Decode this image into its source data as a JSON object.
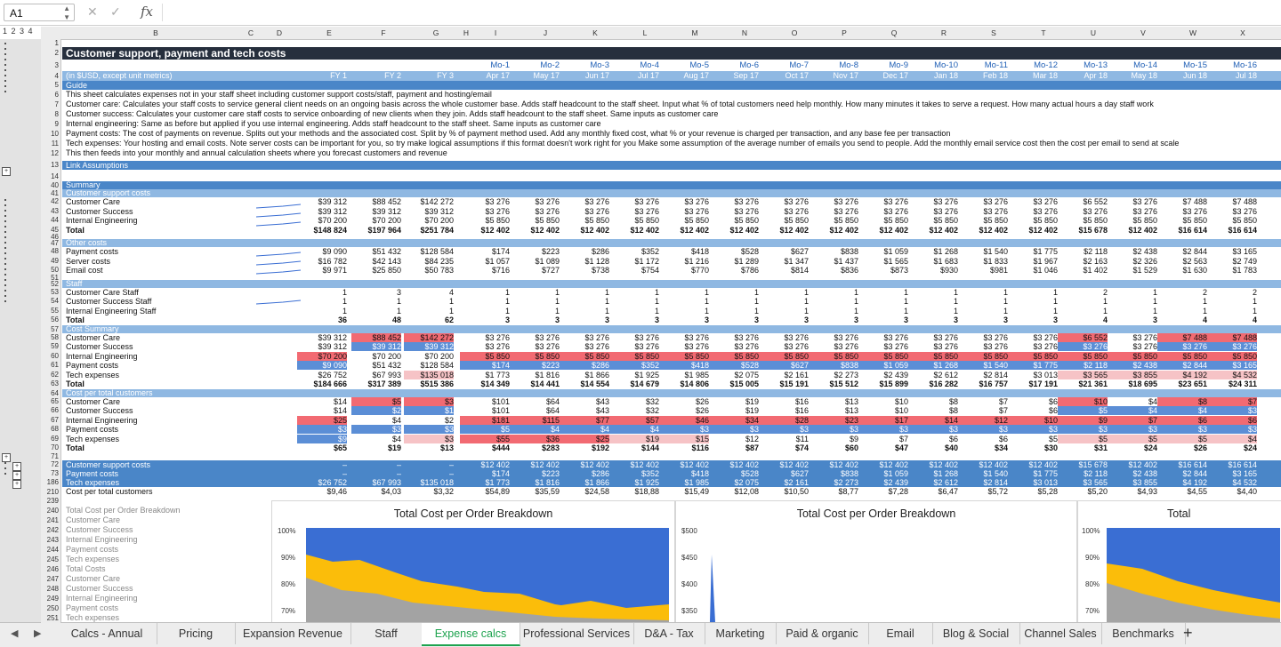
{
  "formula_bar": {
    "name_box": "A1",
    "fx": "fx",
    "cancel": "✕",
    "confirm": "✓"
  },
  "outline_levels": "1 2 3 4",
  "columns": [
    "B",
    "C",
    "D",
    "E",
    "F",
    "G",
    "H",
    "I",
    "J",
    "K",
    "L",
    "M",
    "N",
    "O",
    "P",
    "Q",
    "R",
    "S",
    "T",
    "U",
    "V",
    "W",
    "X"
  ],
  "rows": {
    "title": "Customer support, payment and tech costs",
    "units": "(in $USD, except unit metrics)",
    "guide": "Guide",
    "fy": [
      "FY 1",
      "FY 2",
      "FY 3"
    ],
    "months": [
      "Mo-1",
      "Mo-2",
      "Mo-3",
      "Mo-4",
      "Mo-5",
      "Mo-6",
      "Mo-7",
      "Mo-8",
      "Mo-9",
      "Mo-10",
      "Mo-11",
      "Mo-12",
      "Mo-13",
      "Mo-14",
      "Mo-15",
      "Mo-16"
    ],
    "month_dates": [
      "Apr 17",
      "May 17",
      "Jun 17",
      "Jul 17",
      "Aug 17",
      "Sep 17",
      "Oct 17",
      "Nov 17",
      "Dec 17",
      "Jan 18",
      "Feb 18",
      "Mar 18",
      "Apr 18",
      "May 18",
      "Jun 18",
      "Jul 18"
    ],
    "guide_lines": [
      "This sheet calculates expenses not in your staff sheet including customer support costs/staff, payment and hosting/email",
      "Customer care: Calculates your staff costs to service general client needs on an ongoing basis across the whole customer base. Adds staff headcount to the staff sheet. Input what % of total customers need help monthly. How many minutes it takes to serve a request. How many actual hours a day staff work",
      "Customer success: Calculates your customer care staff costs to service onboarding of new clients when they join. Adds staff headcount to the staff sheet. Same inputs as customer care",
      "Internal engineering: Same as before but applied if you use internal engineering. Adds staff headcount to the staff sheet. Same inputs as customer care",
      "Payment costs: The cost of payments on revenue. Splits out your methods and the associated cost. Split by % of payment method used. Add any monthly fixed cost, what % or your revenue is charged per transaction, and any base fee per transaction",
      "Tech expenses: Your hosting and email costs. Note server costs can be important for you, so try make logical assumptions if this format doesn't work right for you Make some assumption of the average number of emails you send to people. Add the monthly email service cost then the cost per email to send at scale",
      "This then feeds into your monthly and annual calculation sheets where you forecast customers and revenue"
    ],
    "link_assumptions": "Link Assumptions",
    "summary": "Summary",
    "customer_support_costs": "Customer support costs",
    "other_costs": "Other costs",
    "staff": "Staff",
    "cost_summary": "Cost Summary",
    "cost_per_total_customers": "Cost per total customers",
    "labels": {
      "customer_care": "Customer Care",
      "customer_success": "Customer Success",
      "internal_engineering": "Internal Engineering",
      "total": "Total",
      "payment_costs": "Payment costs",
      "server_costs": "Server costs",
      "email_cost": "Email cost",
      "care_staff": "Customer Care Staff",
      "success_staff": "Customer Success Staff",
      "eng_staff": "Internal Engineering Staff",
      "tech_expenses": "Tech expenses",
      "payment_costs_l": "Payment costs"
    },
    "cs_block": {
      "care": [
        "$39 312",
        "$88 452",
        "$142 272",
        "$3 276",
        "$3 276",
        "$3 276",
        "$3 276",
        "$3 276",
        "$3 276",
        "$3 276",
        "$3 276",
        "$3 276",
        "$3 276",
        "$3 276",
        "$3 276",
        "$6 552",
        "$3 276",
        "$7 488",
        "$7 488"
      ],
      "success": [
        "$39 312",
        "$39 312",
        "$39 312",
        "$3 276",
        "$3 276",
        "$3 276",
        "$3 276",
        "$3 276",
        "$3 276",
        "$3 276",
        "$3 276",
        "$3 276",
        "$3 276",
        "$3 276",
        "$3 276",
        "$3 276",
        "$3 276",
        "$3 276",
        "$3 276"
      ],
      "eng": [
        "$70 200",
        "$70 200",
        "$70 200",
        "$5 850",
        "$5 850",
        "$5 850",
        "$5 850",
        "$5 850",
        "$5 850",
        "$5 850",
        "$5 850",
        "$5 850",
        "$5 850",
        "$5 850",
        "$5 850",
        "$5 850",
        "$5 850",
        "$5 850",
        "$5 850"
      ],
      "total": [
        "$148 824",
        "$197 964",
        "$251 784",
        "$12 402",
        "$12 402",
        "$12 402",
        "$12 402",
        "$12 402",
        "$12 402",
        "$12 402",
        "$12 402",
        "$12 402",
        "$12 402",
        "$12 402",
        "$12 402",
        "$15 678",
        "$12 402",
        "$16 614",
        "$16 614"
      ]
    },
    "other_block": {
      "payment": [
        "$9 090",
        "$51 432",
        "$128 584",
        "$174",
        "$223",
        "$286",
        "$352",
        "$418",
        "$528",
        "$627",
        "$838",
        "$1 059",
        "$1 268",
        "$1 540",
        "$1 775",
        "$2 118",
        "$2 438",
        "$2 844",
        "$3 165"
      ],
      "server": [
        "$16 782",
        "$42 143",
        "$84 235",
        "$1 057",
        "$1 089",
        "$1 128",
        "$1 172",
        "$1 216",
        "$1 289",
        "$1 347",
        "$1 437",
        "$1 565",
        "$1 683",
        "$1 833",
        "$1 967",
        "$2 163",
        "$2 326",
        "$2 563",
        "$2 749"
      ],
      "email": [
        "$9 971",
        "$25 850",
        "$50 783",
        "$716",
        "$727",
        "$738",
        "$754",
        "$770",
        "$786",
        "$814",
        "$836",
        "$873",
        "$930",
        "$981",
        "$1 046",
        "$1 402",
        "$1 529",
        "$1 630",
        "$1 783"
      ]
    },
    "staff_block": {
      "care": [
        "1",
        "3",
        "4",
        "1",
        "1",
        "1",
        "1",
        "1",
        "1",
        "1",
        "1",
        "1",
        "1",
        "1",
        "1",
        "2",
        "1",
        "2",
        "2"
      ],
      "success": [
        "1",
        "1",
        "1",
        "1",
        "1",
        "1",
        "1",
        "1",
        "1",
        "1",
        "1",
        "1",
        "1",
        "1",
        "1",
        "1",
        "1",
        "1",
        "1"
      ],
      "eng": [
        "1",
        "1",
        "1",
        "1",
        "1",
        "1",
        "1",
        "1",
        "1",
        "1",
        "1",
        "1",
        "1",
        "1",
        "1",
        "1",
        "1",
        "1",
        "1"
      ],
      "total": [
        "36",
        "48",
        "62",
        "3",
        "3",
        "3",
        "3",
        "3",
        "3",
        "3",
        "3",
        "3",
        "3",
        "3",
        "3",
        "4",
        "3",
        "4",
        "4"
      ]
    },
    "cost_summary_block": {
      "care": [
        "$39 312",
        "$88 452",
        "$142 272",
        "$3 276",
        "$3 276",
        "$3 276",
        "$3 276",
        "$3 276",
        "$3 276",
        "$3 276",
        "$3 276",
        "$3 276",
        "$3 276",
        "$3 276",
        "$3 276",
        "$6 552",
        "$3 276",
        "$7 488",
        "$7 488"
      ],
      "success": [
        "$39 312",
        "$39 312",
        "$39 312",
        "$3 276",
        "$3 276",
        "$3 276",
        "$3 276",
        "$3 276",
        "$3 276",
        "$3 276",
        "$3 276",
        "$3 276",
        "$3 276",
        "$3 276",
        "$3 276",
        "$3 276",
        "$3 276",
        "$3 276",
        "$3 276"
      ],
      "eng": [
        "$70 200",
        "$70 200",
        "$70 200",
        "$5 850",
        "$5 850",
        "$5 850",
        "$5 850",
        "$5 850",
        "$5 850",
        "$5 850",
        "$5 850",
        "$5 850",
        "$5 850",
        "$5 850",
        "$5 850",
        "$5 850",
        "$5 850",
        "$5 850",
        "$5 850"
      ],
      "payment": [
        "$9 090",
        "$51 432",
        "$128 584",
        "$174",
        "$223",
        "$286",
        "$352",
        "$418",
        "$528",
        "$627",
        "$838",
        "$1 059",
        "$1 268",
        "$1 540",
        "$1 775",
        "$2 118",
        "$2 438",
        "$2 844",
        "$3 165"
      ],
      "tech": [
        "$26 752",
        "$67 993",
        "$135 018",
        "$1 773",
        "$1 816",
        "$1 866",
        "$1 925",
        "$1 985",
        "$2 075",
        "$2 161",
        "$2 273",
        "$2 439",
        "$2 612",
        "$2 814",
        "$3 013",
        "$3 565",
        "$3 855",
        "$4 192",
        "$4 532"
      ],
      "total": [
        "$184 666",
        "$317 389",
        "$515 386",
        "$14 349",
        "$14 441",
        "$14 554",
        "$14 679",
        "$14 806",
        "$15 005",
        "$15 191",
        "$15 512",
        "$15 899",
        "$16 282",
        "$16 757",
        "$17 191",
        "$21 361",
        "$18 695",
        "$23 651",
        "$24 311"
      ]
    },
    "per_customer_block": {
      "care": [
        "$14",
        "$5",
        "$3",
        "$101",
        "$64",
        "$43",
        "$32",
        "$26",
        "$19",
        "$16",
        "$13",
        "$10",
        "$8",
        "$7",
        "$6",
        "$10",
        "$4",
        "$8",
        "$7"
      ],
      "success": [
        "$14",
        "$2",
        "$1",
        "$101",
        "$64",
        "$43",
        "$32",
        "$26",
        "$19",
        "$16",
        "$13",
        "$10",
        "$8",
        "$7",
        "$6",
        "$5",
        "$4",
        "$4",
        "$3"
      ],
      "eng": [
        "$25",
        "$4",
        "$2",
        "$181",
        "$115",
        "$77",
        "$57",
        "$46",
        "$34",
        "$28",
        "$23",
        "$17",
        "$14",
        "$12",
        "$10",
        "$9",
        "$7",
        "$6",
        "$6"
      ],
      "payment": [
        "$3",
        "$3",
        "$3",
        "$5",
        "$4",
        "$4",
        "$4",
        "$3",
        "$3",
        "$3",
        "$3",
        "$3",
        "$3",
        "$3",
        "$3",
        "$3",
        "$3",
        "$3",
        "$3"
      ],
      "tech": [
        "$9",
        "$4",
        "$3",
        "$55",
        "$36",
        "$25",
        "$19",
        "$15",
        "$12",
        "$11",
        "$9",
        "$7",
        "$6",
        "$6",
        "$5",
        "$5",
        "$5",
        "$5",
        "$4"
      ],
      "total": [
        "$65",
        "$19",
        "$13",
        "$444",
        "$283",
        "$192",
        "$144",
        "$116",
        "$87",
        "$74",
        "$60",
        "$47",
        "$40",
        "$34",
        "$30",
        "$31",
        "$24",
        "$26",
        "$24"
      ]
    },
    "collapsed": {
      "r73": {
        "label": "Customer support costs",
        "vals": [
          "–",
          "–",
          "–",
          "$12 402",
          "$12 402",
          "$12 402",
          "$12 402",
          "$12 402",
          "$12 402",
          "$12 402",
          "$12 402",
          "$12 402",
          "$12 402",
          "$12 402",
          "$12 402",
          "$15 678",
          "$12 402",
          "$16 614",
          "$16 614"
        ]
      },
      "r186": {
        "label": "Payment costs",
        "vals": [
          "–",
          "–",
          "–",
          "$174",
          "$223",
          "$286",
          "$352",
          "$418",
          "$528",
          "$627",
          "$838",
          "$1 059",
          "$1 268",
          "$1 540",
          "$1 775",
          "$2 118",
          "$2 438",
          "$2 844",
          "$3 165"
        ]
      },
      "r210": {
        "label": "Tech expenses",
        "vals": [
          "$26 752",
          "$67 993",
          "$135 018",
          "$1 773",
          "$1 816",
          "$1 866",
          "$1 925",
          "$1 985",
          "$2 075",
          "$2 161",
          "$2 273",
          "$2 439",
          "$2 612",
          "$2 814",
          "$3 013",
          "$3 565",
          "$3 855",
          "$4 192",
          "$4 532"
        ]
      },
      "r239": {
        "label": "Cost per total customers",
        "vals": [
          "$9,46",
          "$4,03",
          "$3,32",
          "$54,89",
          "$35,59",
          "$24,58",
          "$18,88",
          "$15,49",
          "$12,08",
          "$10,50",
          "$8,77",
          "$7,28",
          "$6,47",
          "$5,72",
          "$5,28",
          "$5,20",
          "$4,93",
          "$4,55",
          "$4,40"
        ]
      }
    },
    "chart_area_labels": [
      "Total Cost per Order Breakdown",
      "Customer Care",
      "Customer Success",
      "Internal Engineering",
      "Payment costs",
      "Tech expenses",
      "Total Costs",
      "Customer Care",
      "Customer Success",
      "Internal Engineering",
      "Payment costs",
      "Tech expenses"
    ],
    "row_numbers": [
      "1",
      "2",
      "3",
      "4",
      "5",
      "6",
      "7",
      "8",
      "9",
      "10",
      "11",
      "12",
      "13",
      "14",
      "40",
      "41",
      "42",
      "43",
      "44",
      "45",
      "46",
      "47",
      "48",
      "49",
      "50",
      "51",
      "52",
      "53",
      "54",
      "55",
      "56",
      "57",
      "58",
      "59",
      "60",
      "61",
      "62",
      "63",
      "64",
      "65",
      "66",
      "67",
      "68",
      "69",
      "70",
      "71",
      "72",
      "73",
      "186",
      "210",
      "239",
      "240",
      "241",
      "242",
      "243",
      "244",
      "245",
      "246",
      "247",
      "248",
      "249",
      "250",
      "251",
      "252"
    ]
  },
  "charts": [
    {
      "title": "Total Cost per Order Breakdown",
      "yticks": [
        "100%",
        "90%",
        "80%",
        "70%"
      ]
    },
    {
      "title": "Total Cost per Order Breakdown",
      "yticks": [
        "$500",
        "$450",
        "$400",
        "$350"
      ]
    },
    {
      "title": "Total",
      "yticks": [
        "100%",
        "90%",
        "80%",
        "70%"
      ]
    }
  ],
  "colors": {
    "yellow": "#fbbd0a",
    "blue": "#3a6ed3",
    "grey": "#a3a3a3",
    "header_dark": "#262f3d",
    "accent_green": "#1ea34f"
  },
  "tabs": [
    "Calcs - Annual",
    "Pricing",
    "Expansion Revenue",
    "Staff",
    "Expense calcs",
    "Professional Services",
    "D&A - Tax",
    "Marketing",
    "Paid & organic",
    "Email",
    "Blog & Social",
    "Channel Sales",
    "Benchmarks"
  ],
  "tab_add": "+",
  "nav_prev": "◀",
  "nav_next": "▶"
}
